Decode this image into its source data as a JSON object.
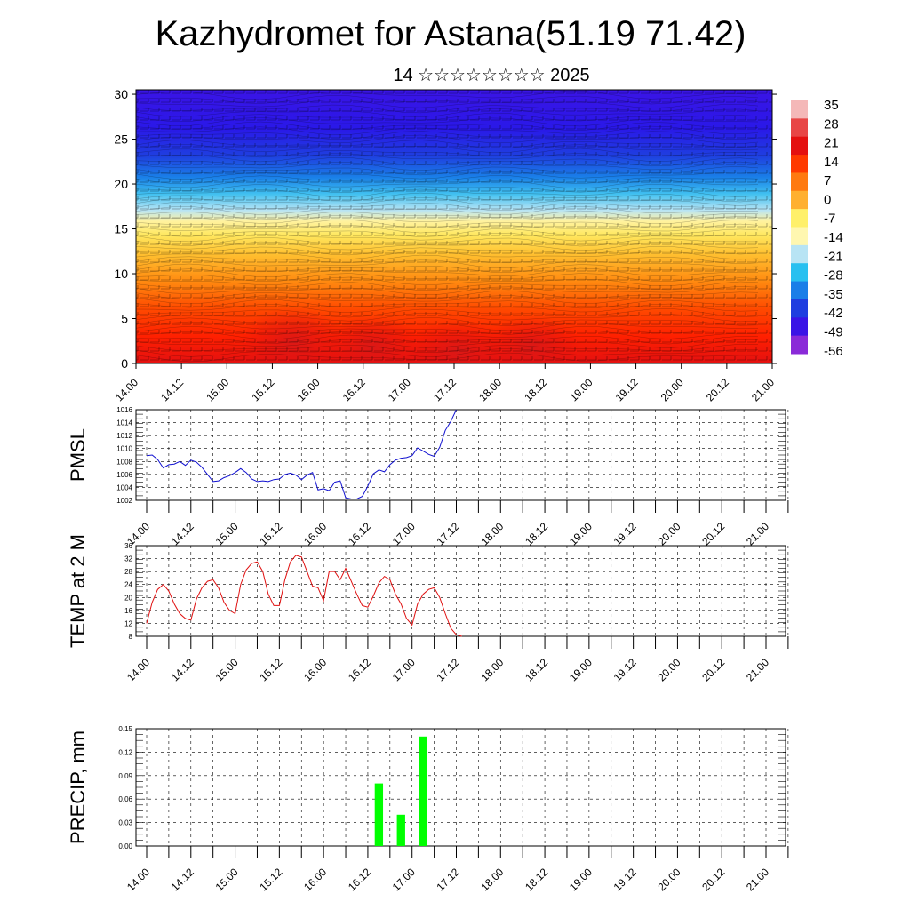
{
  "title": "Kazhydromet for Astana(51.19 71.42)",
  "subtitle": "14 ☆☆☆☆☆☆☆☆ 2025",
  "colors": {
    "pmsl_line": "#1010d0",
    "temp_line": "#e01010",
    "precip_bar": "#00ff00"
  },
  "chart_data": [
    {
      "type": "heatmap",
      "name": "vertical-section",
      "x_tick_labels": [
        "14.00",
        "14.12",
        "15.00",
        "15.12",
        "16.00",
        "16.12",
        "17.00",
        "17.12",
        "18.00",
        "18.12",
        "19.00",
        "19.12",
        "20.00",
        "20.12",
        "21.00"
      ],
      "y_ticks": [
        0,
        5,
        10,
        15,
        20,
        25,
        30
      ],
      "ylim": [
        0,
        30.5
      ],
      "colorbar_labels": [
        "35",
        "28",
        "21",
        "14",
        "7",
        "0",
        "-7",
        "-14",
        "-21",
        "-28",
        "-35",
        "-42",
        "-49",
        "-56"
      ],
      "colorbar_colors": [
        "#f4b8b8",
        "#e84646",
        "#e41010",
        "#ff3a00",
        "#ff7a10",
        "#ffb030",
        "#fff06a",
        "#fff7b0",
        "#b8e4f4",
        "#28c0f0",
        "#1a7ee8",
        "#1f3ee0",
        "#3a14e6",
        "#8a2ad8"
      ]
    },
    {
      "type": "line",
      "name": "PMSL",
      "ylabel": "PMSL",
      "ylim": [
        1002,
        1016
      ],
      "y_ticks": [
        1002,
        1004,
        1006,
        1008,
        1010,
        1012,
        1014,
        1016
      ],
      "x_tick_labels": [
        "14.00",
        "14.12",
        "15.00",
        "15.12",
        "16.00",
        "16.12",
        "17.00",
        "17.12",
        "18.00",
        "18.12",
        "19.00",
        "19.12",
        "20.00",
        "20.12",
        "21.00"
      ],
      "x_step_hours": 3,
      "values": [
        1008.9,
        1009.0,
        1008.3,
        1007.0,
        1007.5,
        1007.6,
        1008.0,
        1007.4,
        1008.2,
        1007.9,
        1007.1,
        1006.0,
        1004.9,
        1005.0,
        1005.5,
        1005.8,
        1006.3,
        1006.9,
        1006.3,
        1005.3,
        1004.9,
        1005.0,
        1004.9,
        1005.2,
        1005.3,
        1006.0,
        1006.2,
        1005.9,
        1005.2,
        1005.9,
        1006.3,
        1003.6,
        1003.8,
        1003.5,
        1004.8,
        1005.0,
        1002.4,
        1002.2,
        1002.2,
        1002.6,
        1004.2,
        1006.1,
        1006.7,
        1006.4,
        1007.5,
        1008.2,
        1008.5,
        1008.6,
        1008.9,
        1010.1,
        1009.6,
        1009.1,
        1008.8,
        1010.2,
        1012.8,
        1014.2,
        1016.0
      ]
    },
    {
      "type": "line",
      "name": "TEMP",
      "ylabel": "TEMP at 2 M",
      "ylim": [
        8,
        36
      ],
      "y_ticks": [
        8,
        12,
        16,
        20,
        24,
        28,
        32,
        36
      ],
      "x_tick_labels": [
        "14.00",
        "14.12",
        "15.00",
        "15.12",
        "16.00",
        "16.12",
        "17.00",
        "17.12",
        "18.00",
        "18.12",
        "19.00",
        "19.12",
        "20.00",
        "20.12",
        "21.00"
      ],
      "x_step_hours": 3,
      "values": [
        12.0,
        18.5,
        22.5,
        24.0,
        22.0,
        18.0,
        15.0,
        13.5,
        13.0,
        19.5,
        23.0,
        25.0,
        25.5,
        23.0,
        18.5,
        16.0,
        15.0,
        24.0,
        28.5,
        30.5,
        31.0,
        28.0,
        21.0,
        17.5,
        17.5,
        25.5,
        31.0,
        33.0,
        32.5,
        28.0,
        23.5,
        23.0,
        19.0,
        28.0,
        28.0,
        25.5,
        29.0,
        25.0,
        21.0,
        17.5,
        17.0,
        20.5,
        24.5,
        26.5,
        25.5,
        21.0,
        18.0,
        13.5,
        11.5,
        18.0,
        21.0,
        22.5,
        23.0,
        20.0,
        15.0,
        10.5,
        8.5,
        8.0
      ]
    },
    {
      "type": "bar",
      "name": "PRECIP",
      "ylabel": "PRECIP, mm",
      "ylim": [
        0,
        0.15
      ],
      "y_tick_labels": [
        "0.00",
        "0.03",
        "0.06",
        "0.09",
        "0.12",
        "0.15"
      ],
      "x_tick_labels": [
        "14.00",
        "14.12",
        "15.00",
        "15.12",
        "16.00",
        "16.12",
        "17.00",
        "17.12",
        "18.00",
        "18.12",
        "19.00",
        "19.12",
        "20.00",
        "20.12",
        "21.00"
      ],
      "x_step_hours": 6,
      "values": [
        0,
        0,
        0,
        0,
        0,
        0,
        0,
        0,
        0,
        0,
        0,
        0,
        0,
        0,
        0,
        0,
        0,
        0,
        0,
        0,
        0,
        0.08,
        0,
        0.04,
        0,
        0.14,
        0,
        0,
        0,
        0,
        0,
        0,
        0,
        0,
        0,
        0,
        0,
        0,
        0,
        0,
        0,
        0,
        0,
        0,
        0,
        0,
        0,
        0,
        0,
        0,
        0,
        0,
        0,
        0,
        0,
        0
      ]
    }
  ]
}
